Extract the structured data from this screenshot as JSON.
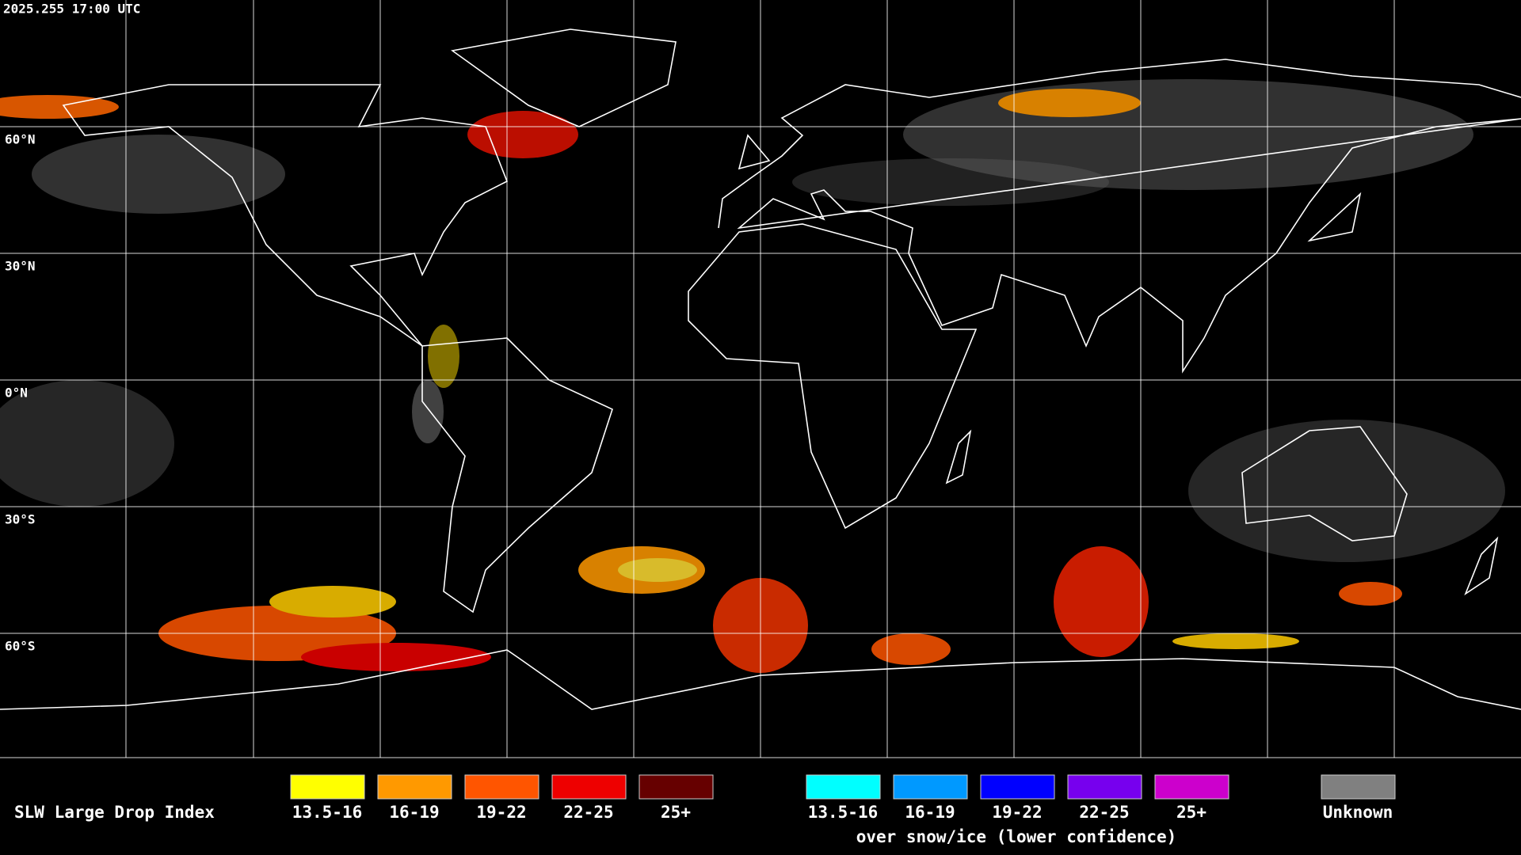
{
  "header": {
    "timestamp": "2025.255 17:00 UTC"
  },
  "map": {
    "latitude_labels": [
      "60°N",
      "30°N",
      "0°N",
      "30°S",
      "60°S"
    ]
  },
  "legend": {
    "title": "SLW Large Drop Index",
    "groups": [
      {
        "items": [
          {
            "label": "13.5-16",
            "color": "#ffff00"
          },
          {
            "label": "16-19",
            "color": "#ff9900"
          },
          {
            "label": "19-22",
            "color": "#ff5500"
          },
          {
            "label": "22-25",
            "color": "#ee0000"
          },
          {
            "label": "25+",
            "color": "#660000"
          }
        ]
      },
      {
        "note": "over snow/ice (lower confidence)",
        "items": [
          {
            "label": "13.5-16",
            "color": "#00ffff"
          },
          {
            "label": "16-19",
            "color": "#0099ff"
          },
          {
            "label": "19-22",
            "color": "#0000ff"
          },
          {
            "label": "22-25",
            "color": "#7700ee"
          },
          {
            "label": "25+",
            "color": "#cc00cc"
          }
        ]
      }
    ],
    "unknown": {
      "label": "Unknown",
      "color": "#808080"
    }
  }
}
